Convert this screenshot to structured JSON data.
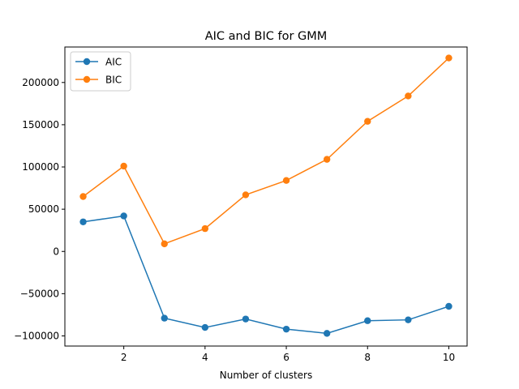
{
  "chart_data": {
    "type": "line",
    "title": "AIC and BIC for GMM",
    "xlabel": "Number of clusters",
    "ylabel": "",
    "x": [
      1,
      2,
      3,
      4,
      5,
      6,
      7,
      8,
      9,
      10
    ],
    "xlim": [
      0.55,
      10.45
    ],
    "ylim": [
      -112000,
      242000
    ],
    "xticks": [
      2,
      4,
      6,
      8,
      10
    ],
    "yticks": [
      -100000,
      -50000,
      0,
      50000,
      100000,
      150000,
      200000
    ],
    "ytick_labels": [
      "−100000",
      "−50000",
      "0",
      "50000",
      "100000",
      "150000",
      "200000"
    ],
    "grid": false,
    "legend_position": "top-left",
    "series": [
      {
        "name": "AIC",
        "color": "#1f77b4",
        "marker": "circle",
        "values": [
          35000,
          42000,
          -79000,
          -90000,
          -80000,
          -92000,
          -97000,
          -82000,
          -81000,
          -65000
        ]
      },
      {
        "name": "BIC",
        "color": "#ff7f0e",
        "marker": "circle",
        "values": [
          65000,
          101000,
          9000,
          27000,
          67000,
          84000,
          109000,
          154000,
          184000,
          229000
        ]
      }
    ]
  }
}
